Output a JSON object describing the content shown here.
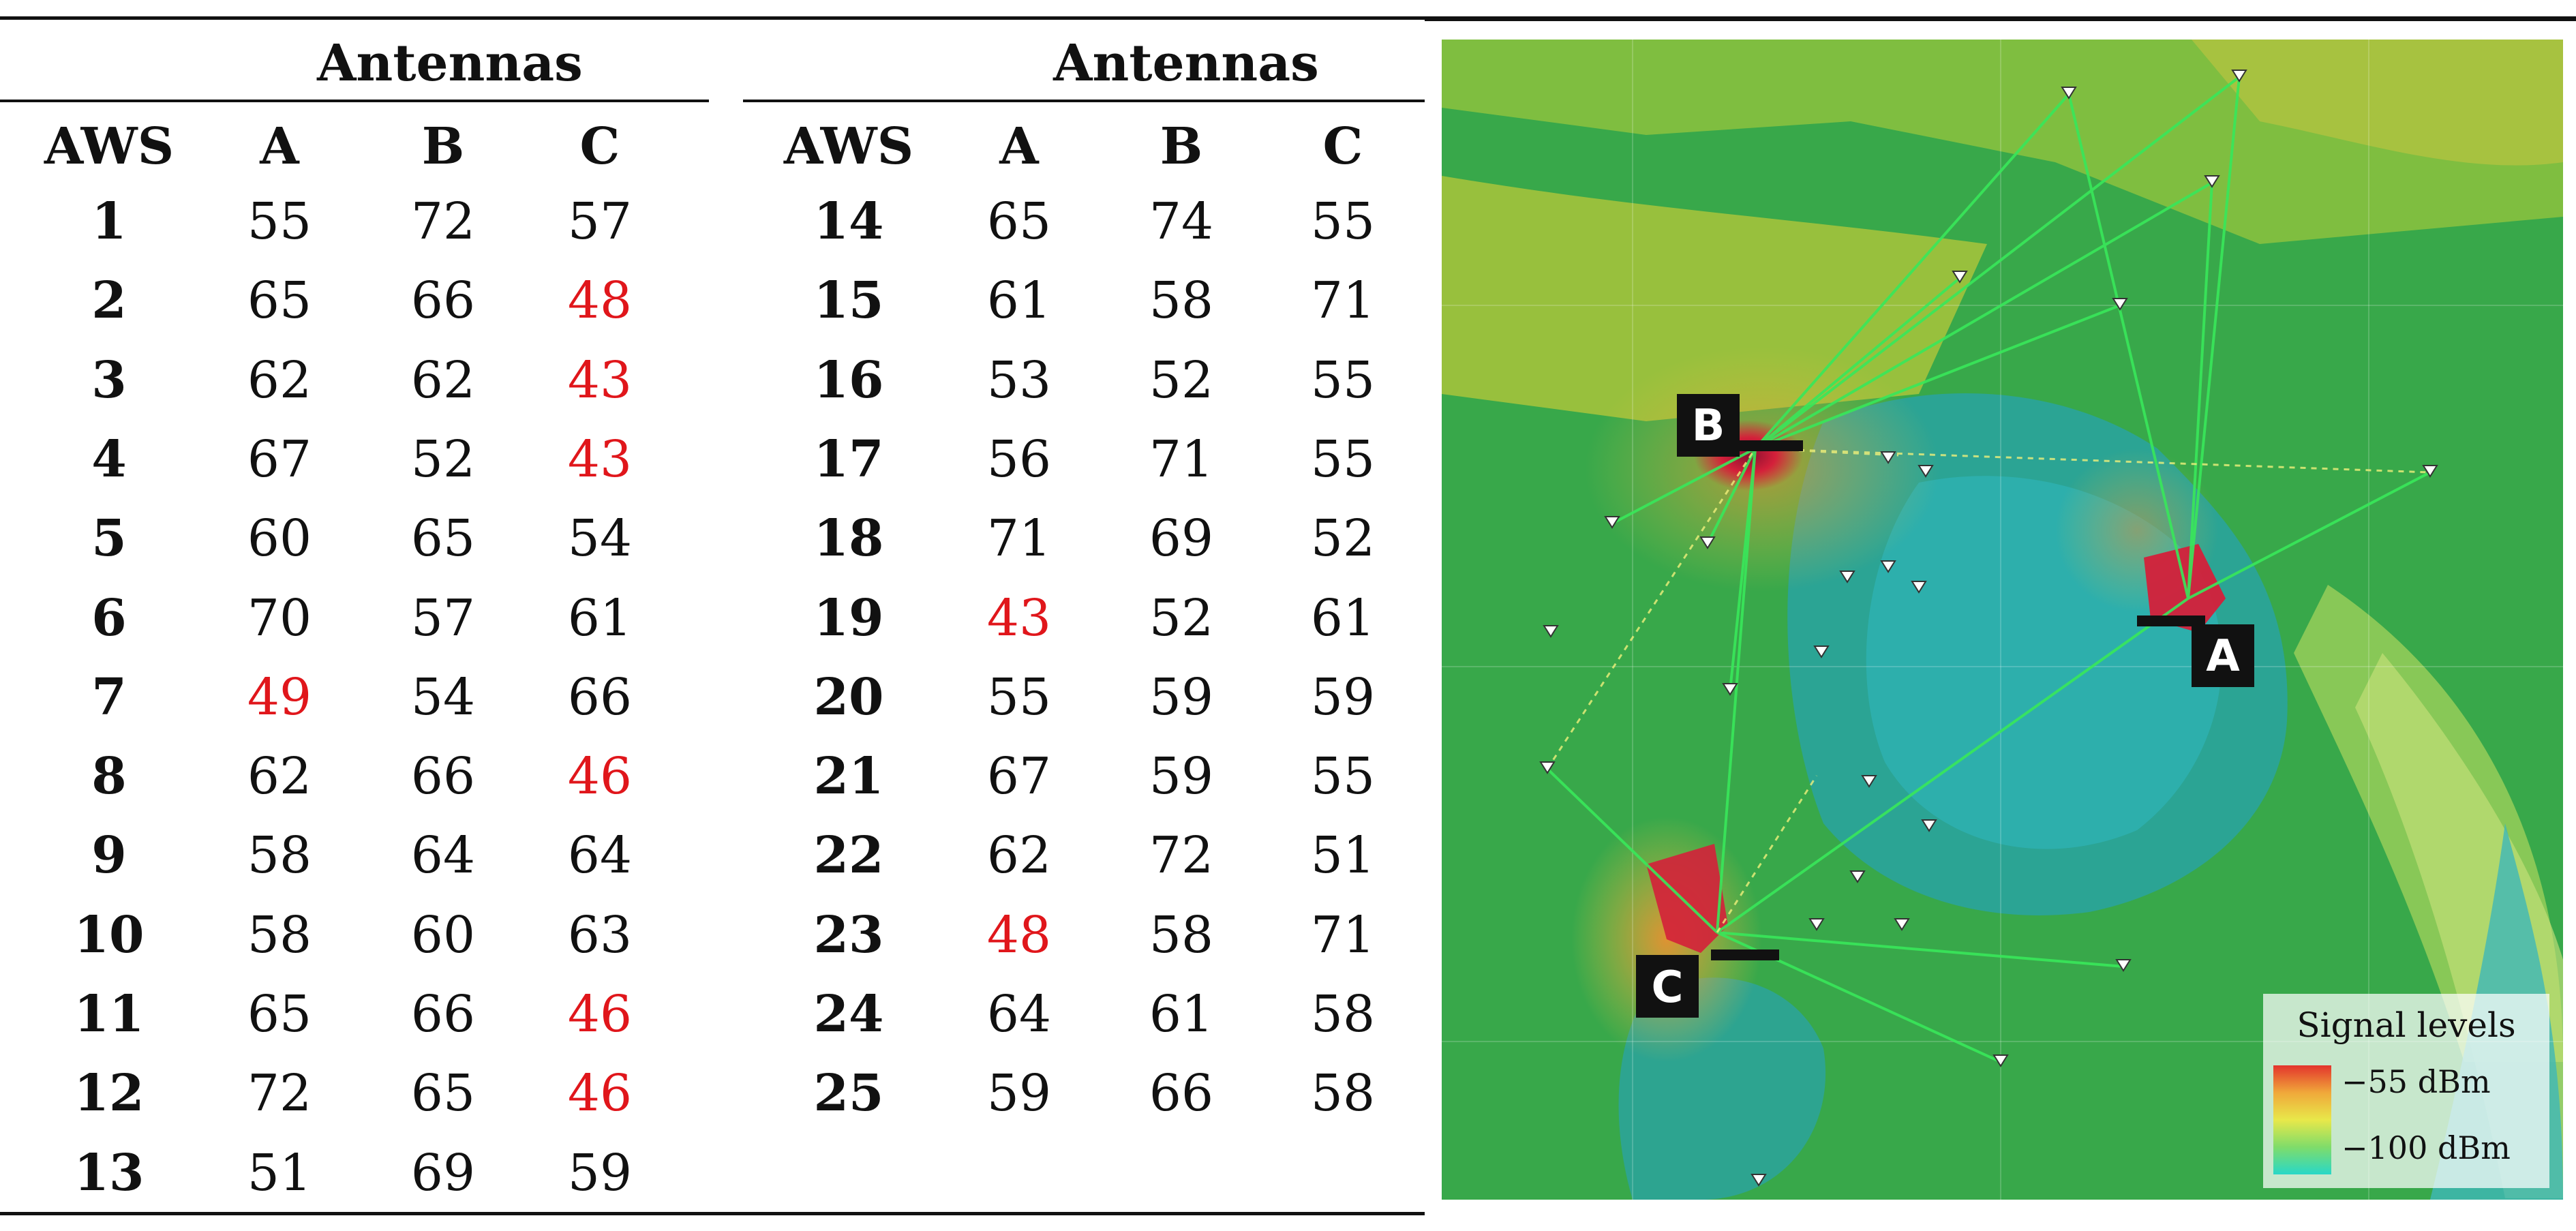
{
  "table": {
    "group_heading_left": "Antennas",
    "group_heading_right": "Antennas",
    "col_headers": [
      "AWS",
      "A",
      "B",
      "C"
    ],
    "rows_left": [
      {
        "aws": "1",
        "a": "55",
        "b": "72",
        "c": "57",
        "low": []
      },
      {
        "aws": "2",
        "a": "65",
        "b": "66",
        "c": "48",
        "low": [
          "c"
        ]
      },
      {
        "aws": "3",
        "a": "62",
        "b": "62",
        "c": "43",
        "low": [
          "c"
        ]
      },
      {
        "aws": "4",
        "a": "67",
        "b": "52",
        "c": "43",
        "low": [
          "c"
        ]
      },
      {
        "aws": "5",
        "a": "60",
        "b": "65",
        "c": "54",
        "low": []
      },
      {
        "aws": "6",
        "a": "70",
        "b": "57",
        "c": "61",
        "low": []
      },
      {
        "aws": "7",
        "a": "49",
        "b": "54",
        "c": "66",
        "low": [
          "a"
        ]
      },
      {
        "aws": "8",
        "a": "62",
        "b": "66",
        "c": "46",
        "low": [
          "c"
        ]
      },
      {
        "aws": "9",
        "a": "58",
        "b": "64",
        "c": "64",
        "low": []
      },
      {
        "aws": "10",
        "a": "58",
        "b": "60",
        "c": "63",
        "low": []
      },
      {
        "aws": "11",
        "a": "65",
        "b": "66",
        "c": "46",
        "low": [
          "c"
        ]
      },
      {
        "aws": "12",
        "a": "72",
        "b": "65",
        "c": "46",
        "low": [
          "c"
        ]
      },
      {
        "aws": "13",
        "a": "51",
        "b": "69",
        "c": "59",
        "low": []
      }
    ],
    "rows_right": [
      {
        "aws": "14",
        "a": "65",
        "b": "74",
        "c": "55",
        "low": []
      },
      {
        "aws": "15",
        "a": "61",
        "b": "58",
        "c": "71",
        "low": []
      },
      {
        "aws": "16",
        "a": "53",
        "b": "52",
        "c": "55",
        "low": []
      },
      {
        "aws": "17",
        "a": "56",
        "b": "71",
        "c": "55",
        "low": []
      },
      {
        "aws": "18",
        "a": "71",
        "b": "69",
        "c": "52",
        "low": []
      },
      {
        "aws": "19",
        "a": "43",
        "b": "52",
        "c": "61",
        "low": [
          "a"
        ]
      },
      {
        "aws": "20",
        "a": "55",
        "b": "59",
        "c": "59",
        "low": []
      },
      {
        "aws": "21",
        "a": "67",
        "b": "59",
        "c": "55",
        "low": []
      },
      {
        "aws": "22",
        "a": "62",
        "b": "72",
        "c": "51",
        "low": []
      },
      {
        "aws": "23",
        "a": "48",
        "b": "58",
        "c": "71",
        "low": [
          "a"
        ]
      },
      {
        "aws": "24",
        "a": "64",
        "b": "61",
        "c": "58",
        "low": []
      },
      {
        "aws": "25",
        "a": "59",
        "b": "66",
        "c": "58",
        "low": []
      }
    ],
    "low_value_color": "#e0161b"
  },
  "map": {
    "antenna_labels": {
      "a": "A",
      "b": "B",
      "c": "C"
    },
    "legend": {
      "title": "Signal levels",
      "max_label": "−55 dBm",
      "min_label": "−100 dBm",
      "gradient_colors": [
        "#e3342c",
        "#f0a83a",
        "#e8e84a",
        "#7fdc6a",
        "#28d8c8"
      ]
    },
    "base_colors": {
      "green": "#2fa84a",
      "yellow_green": "#a8c83a",
      "teal": "#2fa8a0",
      "hot": "#d4203a"
    }
  }
}
